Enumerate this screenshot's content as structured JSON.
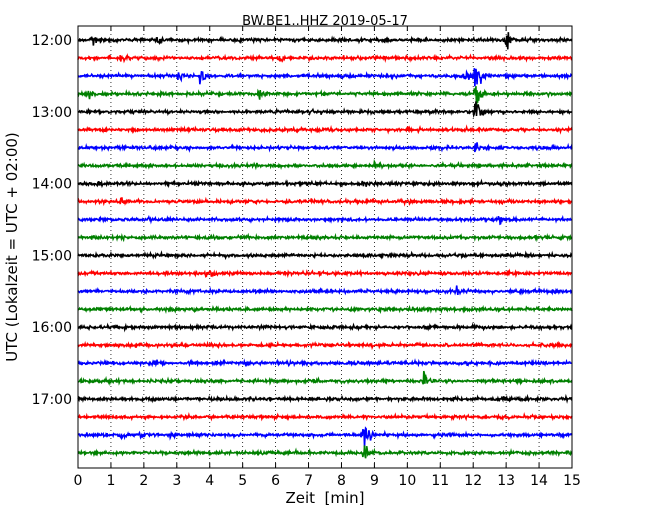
{
  "chart_data": {
    "type": "line",
    "title": "BW.BE1..HHZ 2019-05-17",
    "xlabel": "Zeit  [min]",
    "ylabel": "UTC (Lokalzeit = UTC + 02:00)",
    "xlim": [
      0,
      15
    ],
    "xticks": [
      0,
      1,
      2,
      3,
      4,
      5,
      6,
      7,
      8,
      9,
      10,
      11,
      12,
      13,
      14,
      15
    ],
    "ytick_labels": [
      "12:00",
      "13:00",
      "14:00",
      "15:00",
      "16:00",
      "17:00"
    ],
    "trace_start_times": [
      "12:00",
      "12:15",
      "12:30",
      "12:45",
      "13:00",
      "13:15",
      "13:30",
      "13:45",
      "14:00",
      "14:15",
      "14:30",
      "14:45",
      "15:00",
      "15:15",
      "15:30",
      "15:45",
      "16:00",
      "16:15",
      "16:30",
      "16:45",
      "17:00",
      "17:15",
      "17:30",
      "17:45"
    ],
    "trace_colors": [
      "#000000",
      "#ff0000",
      "#0000ff",
      "#008000"
    ],
    "grid": "vertical dotted at each minute",
    "events": [
      {
        "trace": 0,
        "t": 0.4,
        "amp": 1.3
      },
      {
        "trace": 0,
        "t": 2.4,
        "amp": 0.5
      },
      {
        "trace": 0,
        "t": 4.8,
        "amp": 0.4
      },
      {
        "trace": 0,
        "t": 13.0,
        "amp": 1.0
      },
      {
        "trace": 1,
        "t": 1.3,
        "amp": 0.8
      },
      {
        "trace": 1,
        "t": 6.1,
        "amp": 0.6
      },
      {
        "trace": 2,
        "t": 3.7,
        "amp": 1.0
      },
      {
        "trace": 2,
        "t": 3.0,
        "amp": 0.6
      },
      {
        "trace": 2,
        "t": 11.7,
        "amp": 0.9
      },
      {
        "trace": 2,
        "t": 12.05,
        "amp": 2.5
      },
      {
        "trace": 3,
        "t": 5.5,
        "amp": 0.9
      },
      {
        "trace": 3,
        "t": 12.05,
        "amp": 3.0
      },
      {
        "trace": 3,
        "t": 0.35,
        "amp": 0.5
      },
      {
        "trace": 4,
        "t": 12.05,
        "amp": 1.8
      },
      {
        "trace": 5,
        "t": 10.0,
        "amp": 0.3
      },
      {
        "trace": 6,
        "t": 12.05,
        "amp": 0.9
      },
      {
        "trace": 7,
        "t": 9.0,
        "amp": 0.3
      },
      {
        "trace": 8,
        "t": 0.6,
        "amp": 0.4
      },
      {
        "trace": 8,
        "t": 8.6,
        "amp": 0.35
      },
      {
        "trace": 9,
        "t": 1.3,
        "amp": 0.6
      },
      {
        "trace": 10,
        "t": 12.8,
        "amp": 0.6
      },
      {
        "trace": 13,
        "t": 3.9,
        "amp": 0.6
      },
      {
        "trace": 13,
        "t": 7.3,
        "amp": 0.3
      },
      {
        "trace": 14,
        "t": 11.5,
        "amp": 0.4
      },
      {
        "trace": 18,
        "t": 2.3,
        "amp": 0.9
      },
      {
        "trace": 19,
        "t": 10.5,
        "amp": 1.0
      },
      {
        "trace": 20,
        "t": 12.9,
        "amp": 0.3
      },
      {
        "trace": 22,
        "t": 1.3,
        "amp": 0.4
      },
      {
        "trace": 22,
        "t": 1.9,
        "amp": 0.4
      },
      {
        "trace": 22,
        "t": 2.8,
        "amp": 0.3
      },
      {
        "trace": 22,
        "t": 8.7,
        "amp": 2.2
      },
      {
        "trace": 23,
        "t": 8.7,
        "amp": 1.0
      }
    ]
  }
}
